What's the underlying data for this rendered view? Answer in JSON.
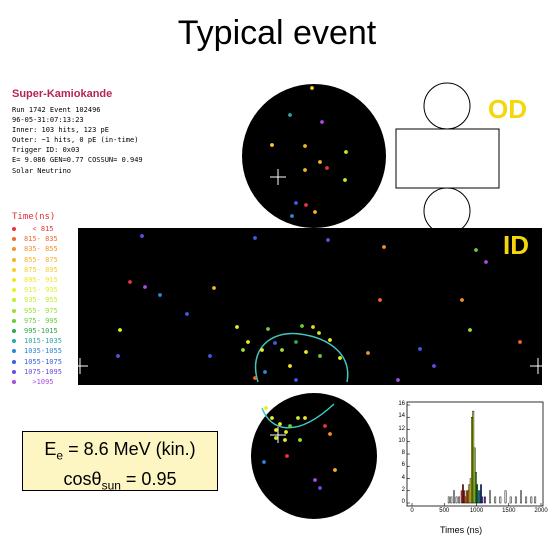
{
  "title": "Typical event",
  "display": {
    "heading": "Super-Kamiokande",
    "lines": [
      "Run 1742 Event 102496",
      "96-05-31:07:13:23",
      "Inner: 103 hits, 123 pE",
      "Outer: ~1 hits, 0 pE (in-time)",
      "Trigger ID: 0x03",
      "E= 9.086 GEN=0.77 COSSUN= 0.949",
      "Solar Neutrino"
    ]
  },
  "time_legend": {
    "title": "Time(ns)",
    "items": [
      {
        "label": "  < 815",
        "color": "#e8343c"
      },
      {
        "label": "815- 835",
        "color": "#f06a2c"
      },
      {
        "label": "835- 855",
        "color": "#f5902a"
      },
      {
        "label": "855- 875",
        "color": "#f7b12a"
      },
      {
        "label": "875- 895",
        "color": "#f5cf2a"
      },
      {
        "label": "895- 915",
        "color": "#f2e52a"
      },
      {
        "label": "915- 935",
        "color": "#e6f02a"
      },
      {
        "label": "935- 955",
        "color": "#c8ec2a"
      },
      {
        "label": "955- 975",
        "color": "#9ee030"
      },
      {
        "label": "975- 995",
        "color": "#6bcc36"
      },
      {
        "label": "995-1015",
        "color": "#2fa848"
      },
      {
        "label": "1015-1035",
        "color": "#2ea7a0"
      },
      {
        "label": "1035-1055",
        "color": "#2e86d8"
      },
      {
        "label": "1055-1075",
        "color": "#3a5fe0"
      },
      {
        "label": "1075-1095",
        "color": "#6a4ce0"
      },
      {
        "label": "  >1095",
        "color": "#a64ce0"
      }
    ]
  },
  "labels": {
    "od": "OD",
    "id": "ID"
  },
  "result": {
    "energy_prefix": "E",
    "energy_sub": "e",
    "energy_value": " = 8.6 MeV (kin.)",
    "cos_prefix": "cosθ",
    "cos_sub": "sun",
    "cos_value": " = 0.95"
  },
  "colors": {
    "cherenkov_ring": "#3fc8c0",
    "od_label": "#f5d60a"
  },
  "chart_data": {
    "type": "bar",
    "xlabel": "Times (ns)",
    "xlim": [
      0,
      2000
    ],
    "ylim": [
      0,
      16
    ],
    "xticks": [
      0,
      500,
      1000,
      1500,
      2000
    ],
    "yticks": [
      0,
      2,
      4,
      6,
      8,
      10,
      12,
      14,
      16
    ],
    "bin_width": 20,
    "bins": [
      {
        "x": 560,
        "y": 1,
        "color": "#000000"
      },
      {
        "x": 600,
        "y": 1,
        "color": "#000000"
      },
      {
        "x": 640,
        "y": 2,
        "color": "#000000"
      },
      {
        "x": 680,
        "y": 1,
        "color": "#000000"
      },
      {
        "x": 720,
        "y": 1,
        "color": "#000000"
      },
      {
        "x": 760,
        "y": 2,
        "color": "#e8343c"
      },
      {
        "x": 780,
        "y": 3,
        "color": "#e8343c"
      },
      {
        "x": 800,
        "y": 2,
        "color": "#e8343c"
      },
      {
        "x": 820,
        "y": 1,
        "color": "#f06a2c"
      },
      {
        "x": 840,
        "y": 2,
        "color": "#f5902a"
      },
      {
        "x": 860,
        "y": 2,
        "color": "#f7b12a"
      },
      {
        "x": 880,
        "y": 3,
        "color": "#f5cf2a"
      },
      {
        "x": 900,
        "y": 4,
        "color": "#f2e52a"
      },
      {
        "x": 920,
        "y": 14,
        "color": "#e6f02a"
      },
      {
        "x": 940,
        "y": 15,
        "color": "#c8ec2a"
      },
      {
        "x": 960,
        "y": 9,
        "color": "#9ee030"
      },
      {
        "x": 980,
        "y": 5,
        "color": "#6bcc36"
      },
      {
        "x": 1000,
        "y": 3,
        "color": "#2fa848"
      },
      {
        "x": 1020,
        "y": 2,
        "color": "#2ea7a0"
      },
      {
        "x": 1040,
        "y": 2,
        "color": "#2e86d8"
      },
      {
        "x": 1060,
        "y": 3,
        "color": "#3a5fe0"
      },
      {
        "x": 1080,
        "y": 1,
        "color": "#6a4ce0"
      },
      {
        "x": 1120,
        "y": 1,
        "color": "#a64ce0"
      },
      {
        "x": 1200,
        "y": 2,
        "color": "#000000"
      },
      {
        "x": 1280,
        "y": 1,
        "color": "#000000"
      },
      {
        "x": 1360,
        "y": 1,
        "color": "#000000"
      },
      {
        "x": 1440,
        "y": 2,
        "color": "#000000"
      },
      {
        "x": 1520,
        "y": 1,
        "color": "#000000"
      },
      {
        "x": 1600,
        "y": 1,
        "color": "#000000"
      },
      {
        "x": 1680,
        "y": 2,
        "color": "#000000"
      },
      {
        "x": 1760,
        "y": 1,
        "color": "#000000"
      },
      {
        "x": 1840,
        "y": 1,
        "color": "#000000"
      },
      {
        "x": 1900,
        "y": 1,
        "color": "#000000"
      }
    ]
  }
}
